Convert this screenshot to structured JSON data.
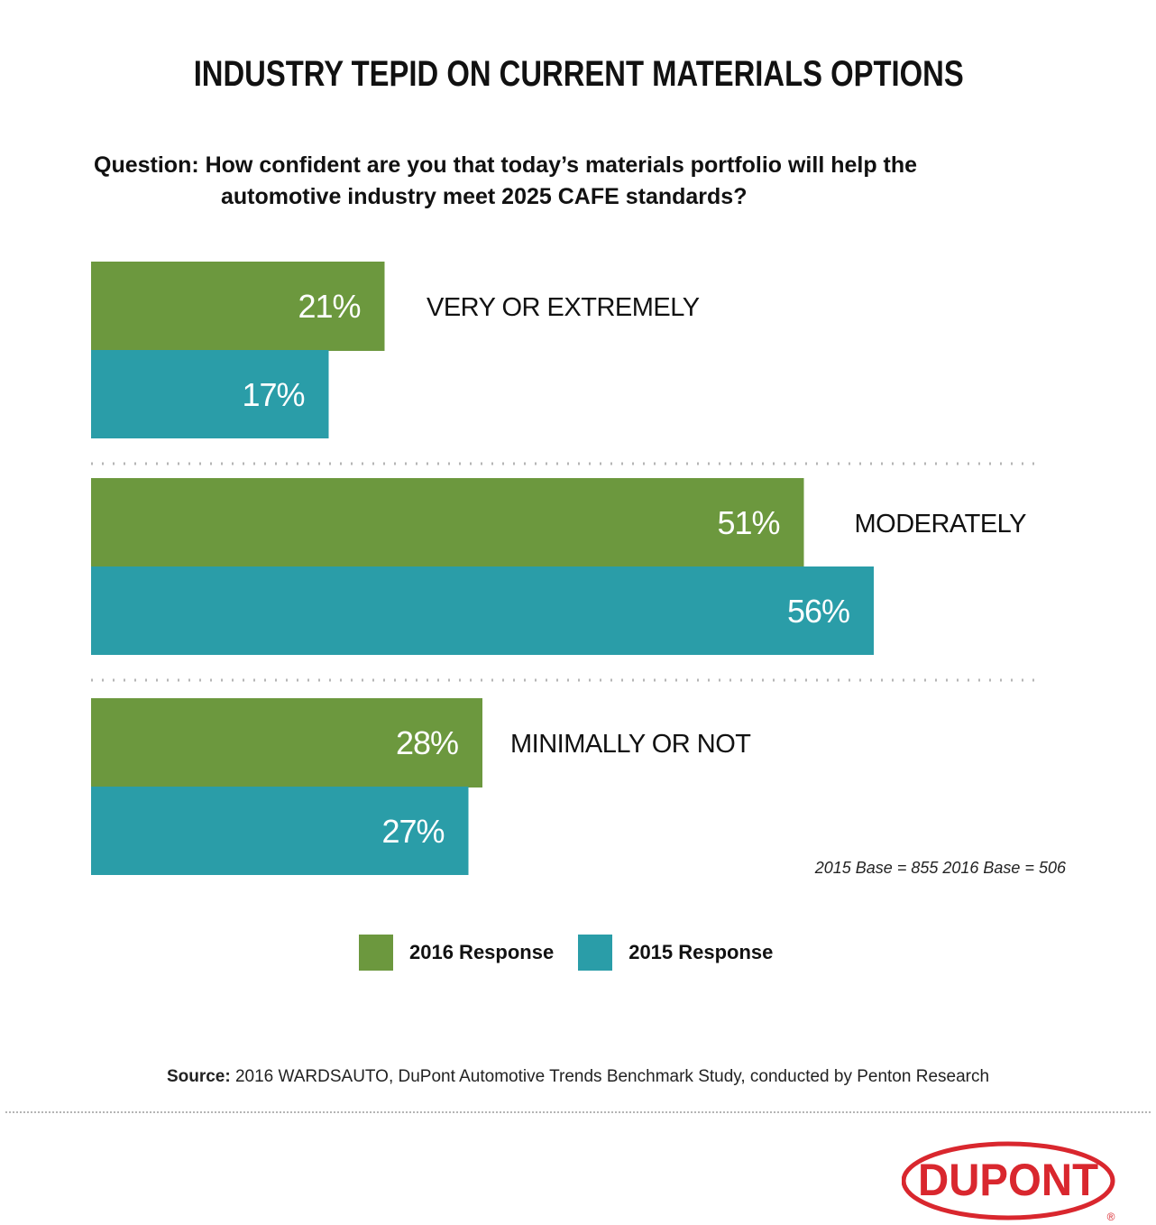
{
  "title": "INDUSTRY TEPID ON CURRENT MATERIALS OPTIONS",
  "question_line1": "Question: How confident are you that today’s materials portfolio will help the",
  "question_line2": "automotive industry meet 2025 CAFE standards?",
  "base_note": "2015 Base = 855  2016 Base = 506",
  "legend": [
    {
      "label": "2016 Response",
      "color": "#6c983e"
    },
    {
      "label": "2015 Response",
      "color": "#2a9da8"
    }
  ],
  "source_label": "Source:",
  "source_text": " 2016 WARDSAUTO, DuPont Automotive Trends Benchmark Study, conducted by Penton Research",
  "logo_text": "DUPONT",
  "logo_registered": "®",
  "colors": {
    "green": "#6c983e",
    "teal": "#2a9da8",
    "logo_red": "#d9272e",
    "divider": "#b5b5b5"
  },
  "chart_data": {
    "type": "bar",
    "orientation": "horizontal",
    "categories": [
      "VERY OR EXTREMELY",
      "MODERATELY",
      "MINIMALLY OR NOT"
    ],
    "series": [
      {
        "name": "2016 Response",
        "values": [
          21,
          51,
          28
        ],
        "labels": [
          "21%",
          "51%",
          "28%"
        ]
      },
      {
        "name": "2015 Response",
        "values": [
          17,
          56,
          27
        ],
        "labels": [
          "17%",
          "56%",
          "27%"
        ]
      }
    ],
    "unit": "%",
    "grid": false
  }
}
